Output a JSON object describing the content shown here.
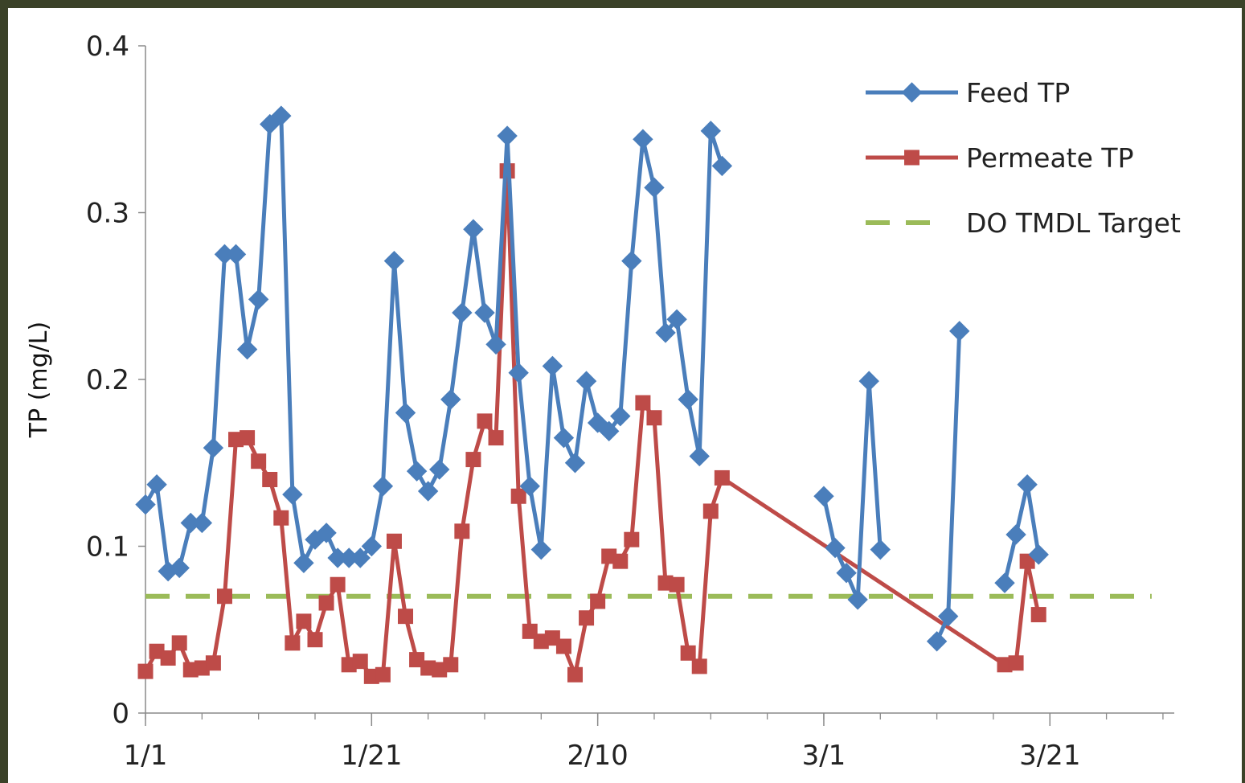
{
  "chart_data": {
    "type": "line",
    "title": "",
    "xlabel": "",
    "ylabel": "TP (mg/L)",
    "ylim": [
      0,
      0.4
    ],
    "yticks": [
      "0",
      "0.1",
      "0.2",
      "0.3",
      "0.4"
    ],
    "xlim": [
      "1/1",
      "4/1"
    ],
    "xticks": [
      "1/1",
      "1/21",
      "2/10",
      "3/1",
      "3/21"
    ],
    "grid": false,
    "legend": "top-right",
    "series": [
      {
        "name": "Feed TP",
        "color": "#4a7ebb",
        "marker": "diamond",
        "points": [
          [
            "1/1",
            0.125
          ],
          [
            "1/2",
            0.137
          ],
          [
            "1/3",
            0.085
          ],
          [
            "1/4",
            0.087
          ],
          [
            "1/5",
            0.114
          ],
          [
            "1/6",
            0.114
          ],
          [
            "1/7",
            0.159
          ],
          [
            "1/8",
            0.275
          ],
          [
            "1/9",
            0.275
          ],
          [
            "1/10",
            0.218
          ],
          [
            "1/11",
            0.248
          ],
          [
            "1/12",
            0.353
          ],
          [
            "1/13",
            0.358
          ],
          [
            "1/14",
            0.131
          ],
          [
            "1/15",
            0.09
          ],
          [
            "1/16",
            0.104
          ],
          [
            "1/17",
            0.108
          ],
          [
            "1/18",
            0.093
          ],
          [
            "1/19",
            0.093
          ],
          [
            "1/20",
            0.093
          ],
          [
            "1/21",
            0.1
          ],
          [
            "1/22",
            0.136
          ],
          [
            "1/23",
            0.271
          ],
          [
            "1/24",
            0.18
          ],
          [
            "1/25",
            0.145
          ],
          [
            "1/26",
            0.133
          ],
          [
            "1/27",
            0.146
          ],
          [
            "1/28",
            0.188
          ],
          [
            "1/29",
            0.24
          ],
          [
            "1/30",
            0.29
          ],
          [
            "1/31",
            0.24
          ],
          [
            "2/1",
            0.221
          ],
          [
            "2/2",
            0.346
          ],
          [
            "2/3",
            0.204
          ],
          [
            "2/4",
            0.136
          ],
          [
            "2/5",
            0.098
          ],
          [
            "2/6",
            0.208
          ],
          [
            "2/7",
            0.165
          ],
          [
            "2/8",
            0.15
          ],
          [
            "2/9",
            0.199
          ],
          [
            "2/10",
            0.174
          ],
          [
            "2/11",
            0.169
          ],
          [
            "2/12",
            0.178
          ],
          [
            "2/13",
            0.271
          ],
          [
            "2/14",
            0.344
          ],
          [
            "2/15",
            0.315
          ],
          [
            "2/16",
            0.228
          ],
          [
            "2/17",
            0.236
          ],
          [
            "2/18",
            0.188
          ],
          [
            "2/19",
            0.154
          ],
          [
            "2/20",
            0.349
          ],
          [
            "2/21",
            0.328
          ],
          [
            "2/22",
            null
          ],
          [
            "2/23",
            null
          ],
          [
            "2/24",
            null
          ],
          [
            "2/25",
            null
          ],
          [
            "2/26",
            null
          ],
          [
            "2/27",
            null
          ],
          [
            "2/28",
            null
          ],
          [
            "2/29",
            null
          ],
          [
            "3/1",
            0.13
          ],
          [
            "3/2",
            0.099
          ],
          [
            "3/3",
            0.084
          ],
          [
            "3/4",
            0.068
          ],
          [
            "3/5",
            0.199
          ],
          [
            "3/6",
            0.098
          ],
          [
            "3/7",
            null
          ],
          [
            "3/8",
            null
          ],
          [
            "3/9",
            null
          ],
          [
            "3/10",
            null
          ],
          [
            "3/11",
            0.043
          ],
          [
            "3/12",
            0.058
          ],
          [
            "3/13",
            0.229
          ],
          [
            "3/14",
            null
          ],
          [
            "3/15",
            null
          ],
          [
            "3/16",
            null
          ],
          [
            "3/17",
            0.078
          ],
          [
            "3/18",
            0.107
          ],
          [
            "3/19",
            0.137
          ],
          [
            "3/20",
            0.095
          ]
        ]
      },
      {
        "name": "Permeate TP",
        "color": "#be4b48",
        "marker": "square",
        "points": [
          [
            "1/1",
            0.025
          ],
          [
            "1/2",
            0.037
          ],
          [
            "1/3",
            0.033
          ],
          [
            "1/4",
            0.042
          ],
          [
            "1/5",
            0.026
          ],
          [
            "1/6",
            0.027
          ],
          [
            "1/7",
            0.03
          ],
          [
            "1/8",
            0.07
          ],
          [
            "1/9",
            0.164
          ],
          [
            "1/10",
            0.165
          ],
          [
            "1/11",
            0.151
          ],
          [
            "1/12",
            0.14
          ],
          [
            "1/13",
            0.117
          ],
          [
            "1/14",
            0.042
          ],
          [
            "1/15",
            0.055
          ],
          [
            "1/16",
            0.044
          ],
          [
            "1/17",
            0.066
          ],
          [
            "1/18",
            0.077
          ],
          [
            "1/19",
            0.029
          ],
          [
            "1/20",
            0.031
          ],
          [
            "1/21",
            0.022
          ],
          [
            "1/22",
            0.023
          ],
          [
            "1/23",
            0.103
          ],
          [
            "1/24",
            0.058
          ],
          [
            "1/25",
            0.032
          ],
          [
            "1/26",
            0.027
          ],
          [
            "1/27",
            0.026
          ],
          [
            "1/28",
            0.029
          ],
          [
            "1/29",
            0.109
          ],
          [
            "1/30",
            0.152
          ],
          [
            "1/31",
            0.175
          ],
          [
            "2/1",
            0.165
          ],
          [
            "2/2",
            0.325
          ],
          [
            "2/3",
            0.13
          ],
          [
            "2/4",
            0.049
          ],
          [
            "2/5",
            0.043
          ],
          [
            "2/6",
            0.045
          ],
          [
            "2/7",
            0.04
          ],
          [
            "2/8",
            0.023
          ],
          [
            "2/9",
            0.057
          ],
          [
            "2/10",
            0.067
          ],
          [
            "2/11",
            0.094
          ],
          [
            "2/12",
            0.091
          ],
          [
            "2/13",
            0.104
          ],
          [
            "2/14",
            0.186
          ],
          [
            "2/15",
            0.177
          ],
          [
            "2/16",
            0.078
          ],
          [
            "2/17",
            0.077
          ],
          [
            "2/18",
            0.036
          ],
          [
            "2/19",
            0.028
          ],
          [
            "2/20",
            0.121
          ],
          [
            "2/21",
            0.141
          ],
          [
            "3/17",
            0.029
          ],
          [
            "3/18",
            0.03
          ],
          [
            "3/19",
            0.091
          ],
          [
            "3/20",
            0.059
          ]
        ]
      },
      {
        "name": "DO TMDL Target",
        "color": "#9bbb59",
        "style": "dashed",
        "points": [
          [
            "1/1",
            0.07
          ],
          [
            "3/30",
            0.07
          ]
        ]
      }
    ]
  }
}
